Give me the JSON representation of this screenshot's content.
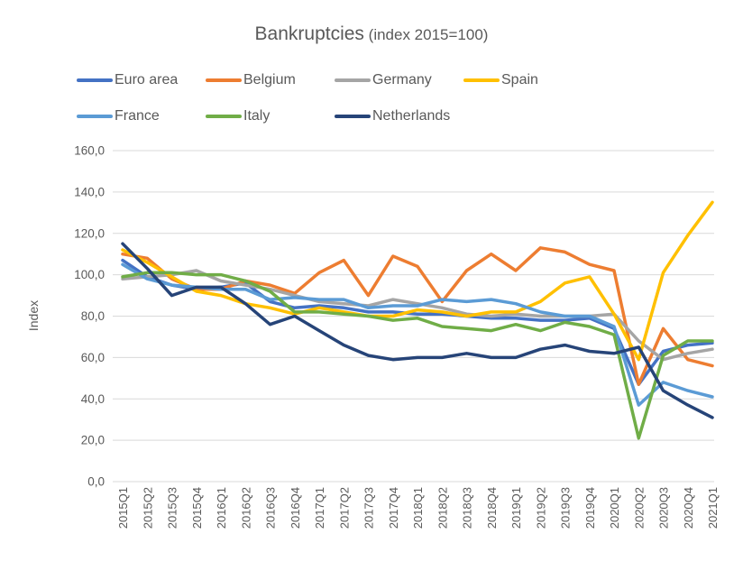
{
  "title": {
    "main": "Bankruptcies",
    "suffix": " (index 2015=100)"
  },
  "chart_data": {
    "type": "line",
    "title": "Bankruptcies (index 2015=100)",
    "xlabel": "",
    "ylabel": "Index",
    "ylim": [
      0,
      160
    ],
    "ytick_step": 20,
    "ytick_labels": [
      "0,0",
      "20,0",
      "40,0",
      "60,0",
      "80,0",
      "100,0",
      "120,0",
      "140,0",
      "160,0"
    ],
    "grid": "horizontal",
    "legend_position": "top-left, two rows",
    "legend_rows": [
      4,
      3
    ],
    "gridline_color": "#D9D9D9",
    "text_color": "#595959",
    "categories": [
      "2015Q1",
      "2015Q2",
      "2015Q3",
      "2015Q4",
      "2016Q1",
      "2016Q2",
      "2016Q3",
      "2016Q4",
      "2017Q1",
      "2017Q2",
      "2017Q3",
      "2017Q4",
      "2018Q1",
      "2018Q2",
      "2018Q3",
      "2018Q4",
      "2019Q1",
      "2019Q2",
      "2019Q3",
      "2019Q4",
      "2020Q1",
      "2020Q2",
      "2020Q3",
      "2020Q4",
      "2021Q1"
    ],
    "series": [
      {
        "name": "Euro area",
        "color": "#4472C4",
        "values": [
          107,
          99,
          95,
          93,
          94,
          96,
          87,
          84,
          85,
          84,
          82,
          82,
          81,
          81,
          80,
          79,
          79,
          78,
          78,
          79,
          74,
          47,
          63,
          66,
          67
        ]
      },
      {
        "name": "Belgium",
        "color": "#ED7D31",
        "values": [
          110,
          108,
          98,
          93,
          93,
          97,
          95,
          91,
          101,
          107,
          90,
          109,
          104,
          87,
          102,
          110,
          102,
          113,
          111,
          105,
          102,
          47,
          74,
          59,
          56
        ]
      },
      {
        "name": "Germany",
        "color": "#A5A5A5",
        "values": [
          98,
          99,
          100,
          102,
          97,
          95,
          93,
          90,
          87,
          86,
          85,
          88,
          86,
          84,
          81,
          80,
          81,
          80,
          80,
          80,
          81,
          68,
          59,
          62,
          64
        ]
      },
      {
        "name": "Spain",
        "color": "#FFC000",
        "values": [
          112,
          106,
          99,
          92,
          90,
          86,
          84,
          81,
          84,
          82,
          80,
          80,
          83,
          82,
          80,
          82,
          82,
          87,
          96,
          99,
          81,
          59,
          101,
          119,
          135
        ]
      },
      {
        "name": "France",
        "color": "#5B9BD5",
        "values": [
          105,
          98,
          95,
          94,
          93,
          93,
          88,
          89,
          88,
          88,
          84,
          85,
          85,
          88,
          87,
          88,
          86,
          82,
          80,
          80,
          75,
          37,
          48,
          44,
          41
        ]
      },
      {
        "name": "Italy",
        "color": "#70AD47",
        "values": [
          99,
          101,
          101,
          100,
          100,
          97,
          92,
          82,
          82,
          81,
          80,
          78,
          79,
          75,
          74,
          73,
          76,
          73,
          77,
          75,
          71,
          21,
          61,
          68,
          68
        ]
      },
      {
        "name": "Netherlands",
        "color": "#264478",
        "values": [
          115,
          103,
          90,
          94,
          94,
          86,
          76,
          80,
          73,
          66,
          61,
          59,
          60,
          60,
          62,
          60,
          60,
          64,
          66,
          63,
          62,
          65,
          44,
          37,
          31
        ]
      }
    ]
  }
}
